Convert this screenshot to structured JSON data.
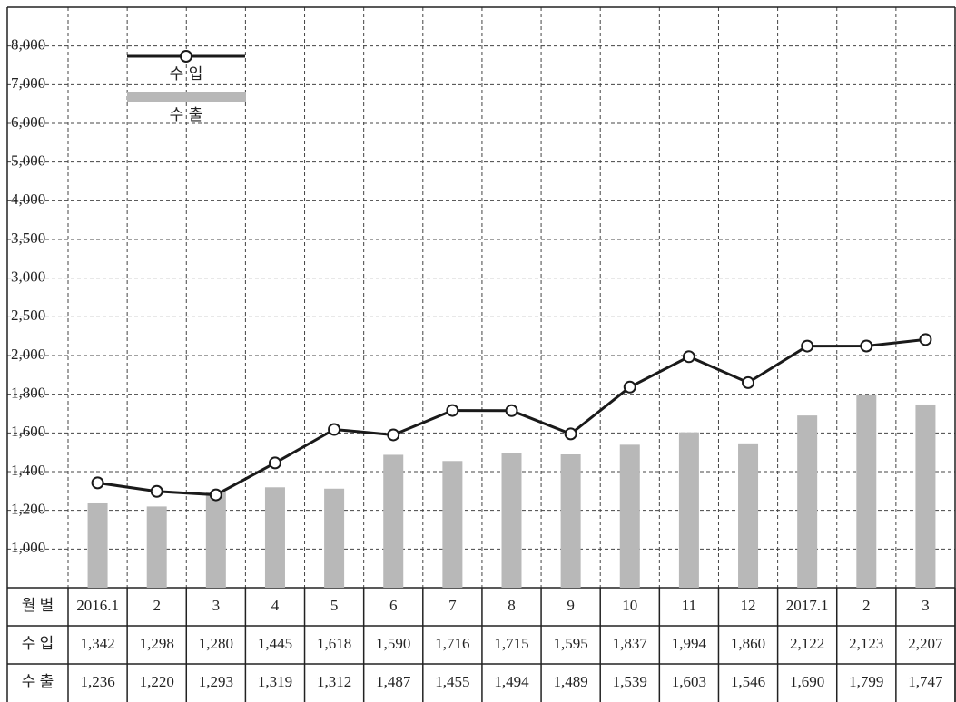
{
  "chart_data": {
    "type": "bar_line",
    "category_label": "월 별",
    "categories": [
      "2016.1",
      "2",
      "3",
      "4",
      "5",
      "6",
      "7",
      "8",
      "9",
      "10",
      "11",
      "12",
      "2017.1",
      "2",
      "3"
    ],
    "series": [
      {
        "name": "수 입",
        "type": "line",
        "color": "#1a1a1a",
        "values": [
          1342,
          1298,
          1280,
          1445,
          1618,
          1590,
          1716,
          1715,
          1595,
          1837,
          1994,
          1860,
          2122,
          2123,
          2207
        ],
        "value_labels": [
          "1,342",
          "1,298",
          "1,280",
          "1,445",
          "1,618",
          "1,590",
          "1,716",
          "1,715",
          "1,595",
          "1,837",
          "1,994",
          "1,860",
          "2,122",
          "2,123",
          "2,207"
        ]
      },
      {
        "name": "수 출",
        "type": "bar",
        "color": "#b8b8b8",
        "values": [
          1236,
          1220,
          1293,
          1319,
          1312,
          1487,
          1455,
          1494,
          1489,
          1539,
          1603,
          1546,
          1690,
          1799,
          1747
        ],
        "value_labels": [
          "1,236",
          "1,220",
          "1,293",
          "1,319",
          "1,312",
          "1,487",
          "1,455",
          "1,494",
          "1,489",
          "1,539",
          "1,603",
          "1,546",
          "1,690",
          "1,799",
          "1,747"
        ]
      }
    ],
    "ylim": [
      800,
      9000
    ],
    "yticks": [
      {
        "value": 1000,
        "label": "1,000"
      },
      {
        "value": 1200,
        "label": "1,200"
      },
      {
        "value": 1400,
        "label": "1,400"
      },
      {
        "value": 1600,
        "label": "1,600"
      },
      {
        "value": 1800,
        "label": "1,800"
      },
      {
        "value": 2000,
        "label": "2,000"
      },
      {
        "value": 2500,
        "label": "2,500"
      },
      {
        "value": 3000,
        "label": "3,000"
      },
      {
        "value": 3500,
        "label": "3,500"
      },
      {
        "value": 4000,
        "label": "4,000"
      },
      {
        "value": 5000,
        "label": "5,000"
      },
      {
        "value": 6000,
        "label": "6,000"
      },
      {
        "value": 7000,
        "label": "7,000"
      },
      {
        "value": 8000,
        "label": "8,000"
      }
    ],
    "grid": true
  }
}
